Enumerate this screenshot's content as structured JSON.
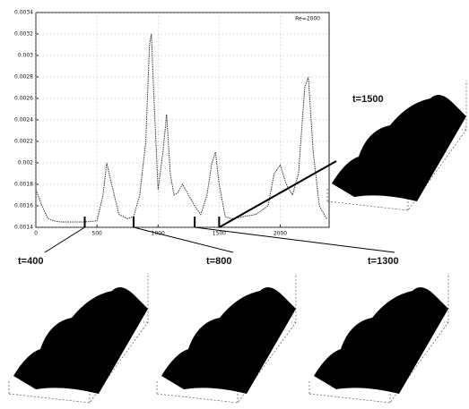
{
  "chart_data": {
    "type": "line",
    "x": [
      0,
      50,
      100,
      150,
      200,
      300,
      400,
      500,
      550,
      580,
      620,
      680,
      750,
      800,
      850,
      900,
      930,
      945,
      970,
      1000,
      1040,
      1070,
      1100,
      1130,
      1160,
      1200,
      1250,
      1300,
      1350,
      1400,
      1440,
      1470,
      1500,
      1550,
      1600,
      1700,
      1800,
      1900,
      1950,
      2000,
      2050,
      2100,
      2150,
      2200,
      2230,
      2270,
      2320,
      2380
    ],
    "series": [
      {
        "name": "Re=2000",
        "color": "#333333",
        "values": [
          0.00175,
          0.0016,
          0.00148,
          0.00146,
          0.00145,
          0.00145,
          0.00145,
          0.00146,
          0.0017,
          0.002,
          0.0018,
          0.00152,
          0.00148,
          0.0015,
          0.0017,
          0.0022,
          0.0031,
          0.0032,
          0.0025,
          0.00175,
          0.0021,
          0.00245,
          0.0019,
          0.0017,
          0.00172,
          0.0018,
          0.0017,
          0.0016,
          0.00152,
          0.0017,
          0.002,
          0.0021,
          0.0018,
          0.0015,
          0.00148,
          0.0015,
          0.00152,
          0.0016,
          0.0019,
          0.00198,
          0.0018,
          0.0017,
          0.0019,
          0.0027,
          0.0028,
          0.0021,
          0.0016,
          0.00148
        ]
      }
    ],
    "xlim": [
      0,
      2400
    ],
    "xticks": [
      0,
      500,
      1000,
      1500,
      2000
    ],
    "ylim": [
      0.0014,
      0.0034
    ],
    "yticks": [
      0.0014,
      0.0016,
      0.0018,
      0.002,
      0.0022,
      0.0024,
      0.0026,
      0.0028,
      0.003,
      0.0032,
      0.0034
    ],
    "grid": true,
    "legend": "upper right",
    "annotations": [
      {
        "label": "t=400",
        "x": 400
      },
      {
        "label": "t=800",
        "x": 800
      },
      {
        "label": "t=1300",
        "x": 1300
      },
      {
        "label": "t=1500",
        "x": 1500
      }
    ]
  }
}
